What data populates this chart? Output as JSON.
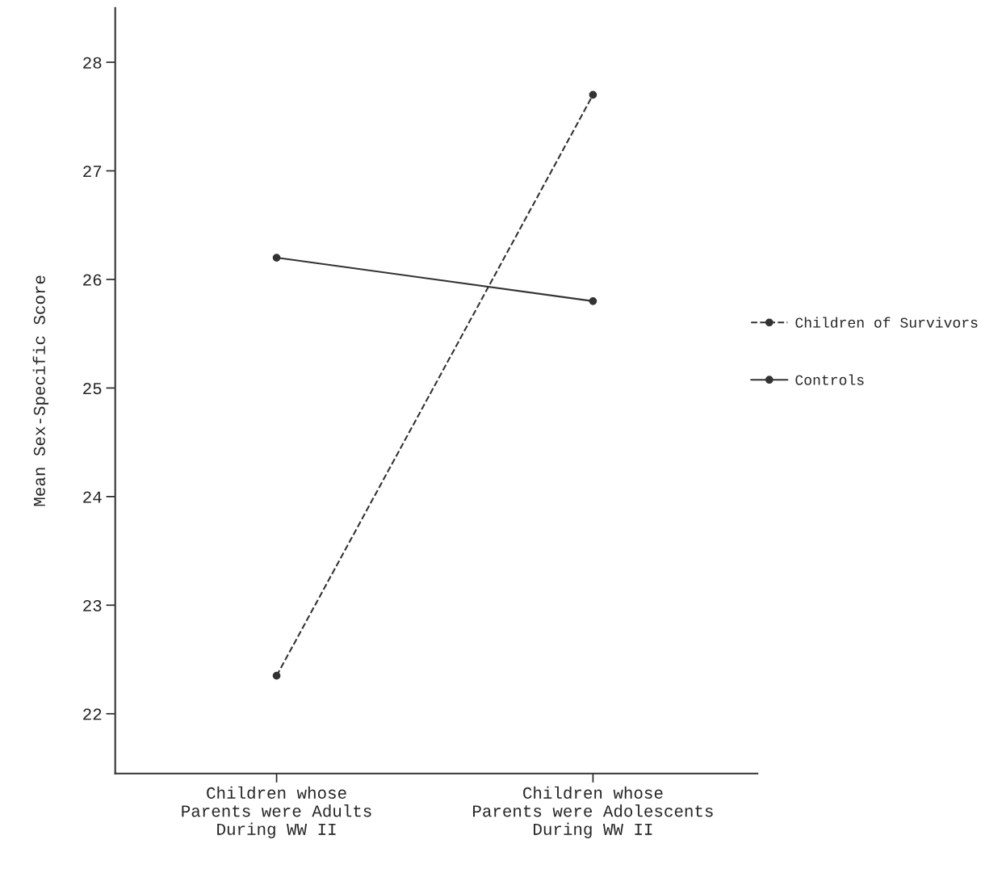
{
  "chart_data": {
    "type": "line",
    "ylabel": "Mean Sex-Specific Score",
    "categories": [
      "Children whose\nParents were Adults\nDuring WW II",
      "Children whose\nParents were Adolescents\nDuring WW II"
    ],
    "series": [
      {
        "name": "Children of Survivors",
        "color": "#333333",
        "line_style": "dashed",
        "values": [
          22.35,
          27.7
        ]
      },
      {
        "name": "Controls",
        "color": "#333333",
        "line_style": "solid",
        "values": [
          26.2,
          25.8
        ]
      }
    ],
    "ylim": [
      21.45,
      28.5
    ],
    "yticks": [
      22,
      23,
      24,
      25,
      26,
      27,
      28
    ],
    "marker": "circle",
    "grid": false,
    "legend": "right"
  }
}
